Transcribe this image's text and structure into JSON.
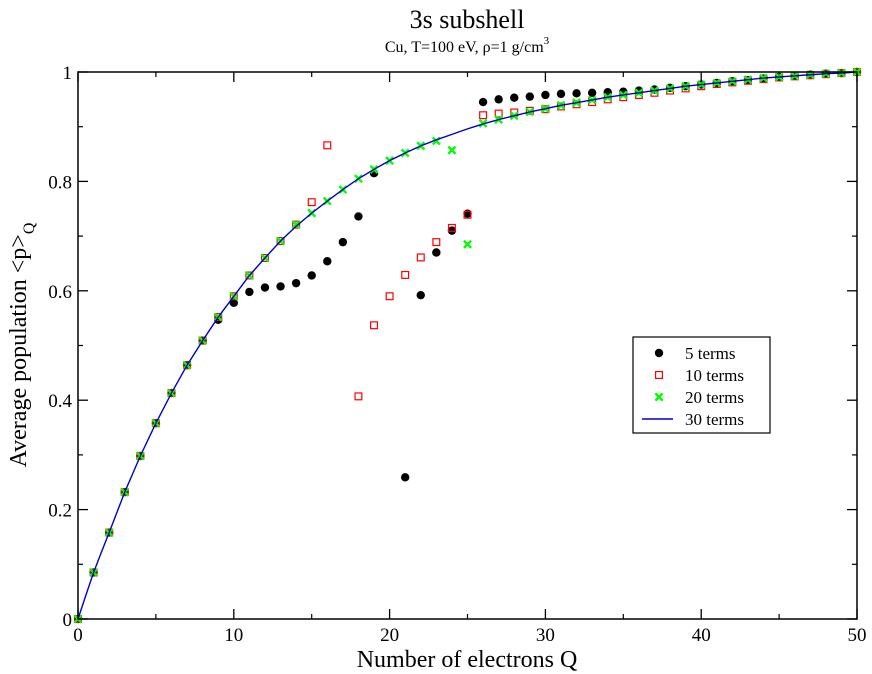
{
  "chart_data": {
    "type": "scatter",
    "title": "3s subshell",
    "subtitle": {
      "main": "Cu, T=100 eV, ρ=1 g/cm",
      "superscript": "3"
    },
    "xlabel": "Number of electrons Q",
    "ylabel": {
      "main": "Average population <p>",
      "subscript": "Q"
    },
    "xlim": [
      0,
      50
    ],
    "ylim": [
      0,
      1
    ],
    "xticks": [
      0,
      10,
      20,
      30,
      40,
      50
    ],
    "yticks": [
      0,
      0.2,
      0.4,
      0.6,
      0.8,
      1
    ],
    "ytick_labels": [
      "0",
      "0.2",
      "0.4",
      "0.6",
      "0.8",
      "1"
    ],
    "legend_position": "right-middle",
    "series": [
      {
        "name": "5 terms",
        "marker": "filled-circle",
        "color": "#000000",
        "x": [
          0,
          1,
          2,
          3,
          4,
          5,
          6,
          7,
          8,
          9,
          10,
          11,
          12,
          13,
          14,
          15,
          16,
          17,
          18,
          19,
          21,
          22,
          23,
          24,
          25,
          26,
          27,
          28,
          29,
          30,
          31,
          32,
          33,
          34,
          35,
          36,
          37,
          38,
          39,
          40,
          41,
          42,
          43,
          44,
          45,
          46,
          47,
          48,
          49,
          50
        ],
        "y": [
          0,
          0.085,
          0.158,
          0.232,
          0.298,
          0.358,
          0.413,
          0.464,
          0.509,
          0.547,
          0.578,
          0.598,
          0.606,
          0.608,
          0.614,
          0.628,
          0.654,
          0.689,
          0.736,
          0.815,
          0.259,
          0.592,
          0.67,
          0.71,
          0.741,
          0.945,
          0.95,
          0.953,
          0.955,
          0.958,
          0.96,
          0.961,
          0.962,
          0.963,
          0.964,
          0.966,
          0.968,
          0.971,
          0.974,
          0.977,
          0.98,
          0.983,
          0.985,
          0.988,
          0.991,
          0.993,
          0.995,
          0.997,
          0.998,
          1.0
        ]
      },
      {
        "name": "10 terms",
        "marker": "open-square",
        "color": "#ff0000",
        "x": [
          0,
          1,
          2,
          3,
          4,
          5,
          6,
          7,
          8,
          9,
          10,
          11,
          12,
          13,
          14,
          15,
          16,
          18,
          19,
          20,
          21,
          22,
          23,
          24,
          25,
          26,
          27,
          28,
          29,
          30,
          31,
          32,
          33,
          34,
          35,
          36,
          37,
          38,
          39,
          40,
          41,
          42,
          43,
          44,
          45,
          46,
          47,
          48,
          49,
          50
        ],
        "y": [
          0,
          0.085,
          0.158,
          0.232,
          0.298,
          0.358,
          0.413,
          0.464,
          0.509,
          0.552,
          0.59,
          0.628,
          0.66,
          0.691,
          0.721,
          0.762,
          0.866,
          0.407,
          0.537,
          0.59,
          0.629,
          0.661,
          0.689,
          0.715,
          0.739,
          0.921,
          0.924,
          0.926,
          0.929,
          0.932,
          0.937,
          0.941,
          0.945,
          0.95,
          0.954,
          0.958,
          0.962,
          0.966,
          0.97,
          0.974,
          0.978,
          0.981,
          0.984,
          0.987,
          0.99,
          0.992,
          0.994,
          0.996,
          0.998,
          1.0
        ]
      },
      {
        "name": "20 terms",
        "marker": "cross",
        "color": "#00ff00",
        "x": [
          0,
          1,
          2,
          3,
          4,
          5,
          6,
          7,
          8,
          9,
          10,
          11,
          12,
          13,
          14,
          15,
          16,
          17,
          18,
          19,
          20,
          21,
          22,
          23,
          24,
          25,
          26,
          27,
          28,
          29,
          30,
          31,
          32,
          33,
          34,
          35,
          36,
          37,
          38,
          39,
          40,
          41,
          42,
          43,
          44,
          45,
          46,
          47,
          48,
          49,
          50
        ],
        "y": [
          0,
          0.085,
          0.158,
          0.232,
          0.298,
          0.358,
          0.413,
          0.464,
          0.509,
          0.552,
          0.59,
          0.628,
          0.66,
          0.691,
          0.721,
          0.742,
          0.764,
          0.785,
          0.805,
          0.822,
          0.838,
          0.852,
          0.865,
          0.874,
          0.857,
          0.685,
          0.906,
          0.913,
          0.92,
          0.927,
          0.933,
          0.939,
          0.944,
          0.949,
          0.954,
          0.958,
          0.962,
          0.966,
          0.97,
          0.974,
          0.977,
          0.98,
          0.983,
          0.986,
          0.989,
          0.991,
          0.993,
          0.995,
          0.997,
          0.998,
          1.0
        ]
      },
      {
        "name": "30 terms",
        "marker": "line",
        "color": "#0000cc",
        "x": [
          0,
          0.5,
          1,
          1.5,
          2,
          3,
          4,
          5,
          6,
          7,
          8,
          9,
          10,
          11,
          12,
          13,
          14,
          15,
          16,
          17,
          18,
          19,
          20,
          21,
          22,
          23,
          24,
          25,
          26,
          27,
          28,
          29,
          30,
          31,
          32,
          33,
          34,
          35,
          36,
          37,
          38,
          39,
          40,
          41,
          42,
          43,
          44,
          45,
          46,
          47,
          48,
          49,
          50
        ],
        "y": [
          0,
          0.043,
          0.085,
          0.122,
          0.158,
          0.232,
          0.298,
          0.358,
          0.413,
          0.464,
          0.509,
          0.552,
          0.59,
          0.628,
          0.66,
          0.691,
          0.718,
          0.742,
          0.764,
          0.785,
          0.805,
          0.822,
          0.838,
          0.852,
          0.865,
          0.876,
          0.886,
          0.896,
          0.905,
          0.913,
          0.92,
          0.927,
          0.933,
          0.939,
          0.944,
          0.949,
          0.954,
          0.958,
          0.962,
          0.966,
          0.97,
          0.974,
          0.977,
          0.98,
          0.983,
          0.986,
          0.989,
          0.991,
          0.993,
          0.995,
          0.997,
          0.998,
          1.0
        ]
      }
    ]
  }
}
